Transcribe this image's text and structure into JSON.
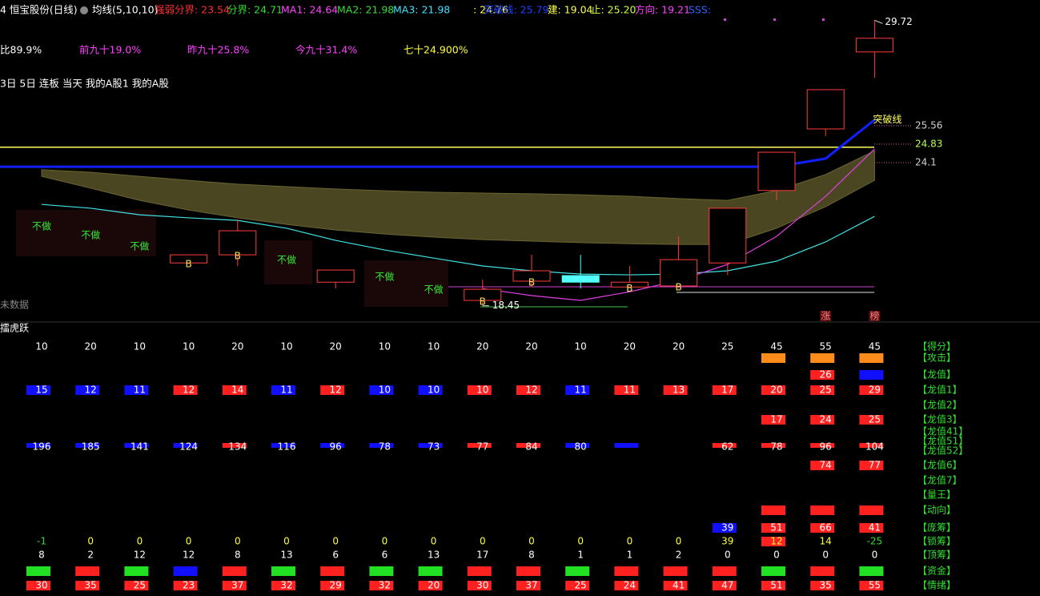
{
  "header": {
    "items": [
      {
        "text": "4 恒宝股份(日线)",
        "color": "#ffffff"
      },
      {
        "text": "均线(5,10,10)",
        "color": "#ffffff"
      },
      {
        "text": "强弱分界: 23.54",
        "color": "#ff3030"
      },
      {
        "text": "分界: 24.71",
        "color": "#33dd33"
      },
      {
        "text": "MA1: 24.64",
        "color": "#ff40ff"
      },
      {
        "text": "MA2: 21.98",
        "color": "#33dd33"
      },
      {
        "text": "MA3: 21.98",
        "color": "#40e0ff"
      },
      {
        "text": ": 24.76",
        "color": "#ffff40"
      },
      {
        "text": "突破线: 25.79",
        "color": "#2040ff"
      },
      {
        "text": "建: 19.04",
        "color": "#ffff40"
      },
      {
        "text": "止: 25.20",
        "color": "#ccff40"
      },
      {
        "text": "方向: 19.21",
        "color": "#ff40ff"
      },
      {
        "text": "SSS:",
        "color": "#3060ff"
      }
    ],
    "row2": [
      {
        "text": "比89.9%",
        "color": "#ffffff"
      },
      {
        "text": "前九十19.0%",
        "color": "#ff40ff"
      },
      {
        "text": "昨九十25.8%",
        "color": "#ff40ff"
      },
      {
        "text": "今九十31.4%",
        "color": "#ff40ff"
      },
      {
        "text": "七十24.900%",
        "color": "#ffff40"
      }
    ],
    "row3": "3日 5日 连板 当天 我的A股1 我的A股",
    "no_data": "未数据"
  },
  "chart_data": {
    "type": "candlestick",
    "categories": [
      null,
      null,
      null,
      null,
      null,
      null,
      null,
      null,
      null,
      null,
      null,
      null,
      null,
      null,
      null,
      null,
      null,
      null
    ],
    "open": [
      null,
      null,
      null,
      20.14,
      20.46,
      null,
      19.38,
      null,
      null,
      18.66,
      19.42,
      19.64,
      19.19,
      19.23,
      20.14,
      23.0,
      25.43,
      28.47
    ],
    "high": [
      null,
      null,
      null,
      20.46,
      21.85,
      null,
      19.86,
      null,
      null,
      19.48,
      20.46,
      20.46,
      20.02,
      21.19,
      22.3,
      24.51,
      26.98,
      29.72
    ],
    "low": [
      null,
      null,
      null,
      20.14,
      20.02,
      null,
      19.13,
      null,
      null,
      18.45,
      19.19,
      19.13,
      19.19,
      19.13,
      19.67,
      22.61,
      25.14,
      27.45
    ],
    "close": [
      null,
      null,
      null,
      20.46,
      21.41,
      null,
      19.86,
      null,
      null,
      19.1,
      19.83,
      19.38,
      19.38,
      20.27,
      22.3,
      24.51,
      26.98,
      29.01
    ],
    "up_color": "#ff3c3c",
    "down_color": "#54ffff",
    "ylim": [
      17.87,
      30.52
    ],
    "band": {
      "color": "#4a4622",
      "upper": [
        23.82,
        23.72,
        23.56,
        23.4,
        23.25,
        23.15,
        23.06,
        22.99,
        22.93,
        22.9,
        22.87,
        22.83,
        22.77,
        22.68,
        22.61,
        23.0,
        23.63,
        24.57
      ],
      "lower": [
        23.56,
        23.09,
        22.61,
        22.23,
        21.92,
        21.66,
        21.44,
        21.28,
        21.16,
        21.06,
        21.0,
        20.94,
        20.9,
        20.87,
        20.87,
        21.51,
        22.36,
        23.4
      ]
    },
    "series": [
      {
        "color": "#40e0e0",
        "values": [
          22.45,
          22.3,
          22.04,
          21.92,
          21.82,
          21.51,
          21.03,
          20.65,
          20.33,
          20.02,
          19.83,
          19.7,
          19.67,
          19.7,
          19.83,
          20.21,
          20.97,
          21.98
        ]
      },
      {
        "color": "#e040e0",
        "values": [
          null,
          null,
          null,
          null,
          null,
          null,
          null,
          null,
          null,
          19.13,
          18.85,
          18.66,
          19.0,
          19.45,
          20.08,
          21.19,
          22.77,
          24.64
        ]
      },
      {
        "name": "突破线",
        "color": "#1020ff",
        "values": [
          23.94,
          23.94,
          23.94,
          23.94,
          23.94,
          23.94,
          23.94,
          23.94,
          23.94,
          23.94,
          23.94,
          23.94,
          23.94,
          23.94,
          23.94,
          23.94,
          24.26,
          25.79
        ]
      }
    ],
    "hlines": [
      {
        "value": 24.71,
        "color": "#ffff60"
      }
    ],
    "price_labels": [
      {
        "value": 25.56,
        "color": "#d0d0d0"
      },
      {
        "value": 24.83,
        "color": "#b8ff50"
      },
      {
        "value": 24.1,
        "color": "#d0d0d0"
      }
    ],
    "high_label": 29.72,
    "low_label": 18.45,
    "signals": [
      "不做",
      "不做",
      "不做",
      "B",
      "B",
      "不做",
      null,
      "不做",
      "不做",
      "B",
      "B",
      null,
      "B",
      "B",
      null,
      null,
      null,
      null
    ],
    "tags": [
      null,
      null,
      null,
      null,
      null,
      null,
      null,
      null,
      null,
      null,
      null,
      null,
      null,
      null,
      null,
      null,
      "涨",
      "榜"
    ]
  },
  "indicators": {
    "title": "擂虎跃",
    "rows": [
      {
        "label": "【得分】",
        "values": [
          10,
          20,
          10,
          10,
          20,
          10,
          20,
          10,
          10,
          20,
          20,
          10,
          20,
          20,
          25,
          45,
          55,
          45
        ]
      },
      {
        "label": "【攻击】",
        "boxes": [
          null,
          null,
          null,
          null,
          null,
          null,
          null,
          null,
          null,
          null,
          null,
          null,
          null,
          null,
          null,
          "#ff8c1a",
          "#ff8c1a",
          "#ff8c1a"
        ]
      },
      {
        "label": "【龙值】",
        "values": [
          null,
          null,
          null,
          null,
          null,
          null,
          null,
          null,
          null,
          null,
          null,
          null,
          null,
          null,
          null,
          null,
          26,
          null
        ],
        "boxes": [
          null,
          null,
          null,
          null,
          null,
          null,
          null,
          null,
          null,
          null,
          null,
          null,
          null,
          null,
          null,
          null,
          "#ff2020",
          "#1010ff"
        ]
      },
      {
        "label": "【龙值1】",
        "values": [
          15,
          12,
          11,
          12,
          14,
          11,
          12,
          10,
          10,
          10,
          12,
          11,
          11,
          13,
          17,
          20,
          25,
          29
        ],
        "boxes": [
          "#1010ff",
          "#1010ff",
          "#1010ff",
          "#ff2020",
          "#ff2020",
          "#1010ff",
          "#ff2020",
          "#1010ff",
          "#1010ff",
          "#ff2020",
          "#ff2020",
          "#1010ff",
          "#ff2020",
          "#ff2020",
          "#ff2020",
          "#ff2020",
          "#ff2020",
          "#ff2020"
        ]
      },
      {
        "label": "【龙值2】"
      },
      {
        "label": "【龙值3】",
        "values": [
          null,
          null,
          null,
          null,
          null,
          null,
          null,
          null,
          null,
          null,
          null,
          null,
          null,
          null,
          null,
          17,
          24,
          25
        ],
        "boxes": [
          null,
          null,
          null,
          null,
          null,
          null,
          null,
          null,
          null,
          null,
          null,
          null,
          null,
          null,
          null,
          "#ff2020",
          "#ff2020",
          "#ff2020"
        ]
      },
      {
        "label": "【龙值41】",
        "values": [
          196,
          185,
          141,
          124,
          134,
          116,
          96,
          78,
          73,
          77,
          84,
          80,
          null,
          null,
          62,
          78,
          96,
          104
        ],
        "boxes": [
          "#1010ff",
          "#1010ff",
          "#1010ff",
          "#1010ff",
          "#ff2020",
          "#1010ff",
          "#1010ff",
          "#1010ff",
          "#1010ff",
          "#ff2020",
          "#ff2020",
          "#1010ff",
          "#1010ff",
          null,
          "#ff2020",
          "#ff2020",
          "#ff2020",
          "#ff2020"
        ]
      },
      {
        "label": "【龙值51】"
      },
      {
        "label": "【龙值52】"
      },
      {
        "label": "【龙值6】",
        "values": [
          null,
          null,
          null,
          null,
          null,
          null,
          null,
          null,
          null,
          null,
          null,
          null,
          null,
          null,
          null,
          null,
          74,
          77
        ],
        "boxes": [
          null,
          null,
          null,
          null,
          null,
          null,
          null,
          null,
          null,
          null,
          null,
          null,
          null,
          null,
          null,
          null,
          "#ff2020",
          "#ff2020"
        ]
      },
      {
        "label": "【龙值7】"
      },
      {
        "label": "【量王】"
      },
      {
        "label": "【动向】",
        "boxes": [
          null,
          null,
          null,
          null,
          null,
          null,
          null,
          null,
          null,
          null,
          null,
          null,
          null,
          null,
          null,
          "#ff2020",
          "#ff2020",
          "#ff2020"
        ]
      },
      {
        "label": "【庞筹】",
        "values": [
          null,
          null,
          null,
          null,
          null,
          null,
          null,
          null,
          null,
          null,
          null,
          null,
          null,
          null,
          39,
          51,
          66,
          41
        ],
        "boxes": [
          null,
          null,
          null,
          null,
          null,
          null,
          null,
          null,
          null,
          null,
          null,
          null,
          null,
          null,
          "#1010ff",
          "#ff2020",
          "#ff2020",
          "#ff2020"
        ]
      },
      {
        "label": "【锁筹】",
        "values": [
          -1,
          0,
          0,
          0,
          0,
          0,
          0,
          0,
          0,
          0,
          0,
          0,
          0,
          0,
          39,
          12,
          14,
          -25
        ],
        "boxes": [
          null,
          null,
          null,
          null,
          null,
          null,
          null,
          null,
          null,
          null,
          null,
          null,
          null,
          null,
          null,
          "#ff2020",
          null,
          null
        ],
        "text_colors": [
          "#33dd33",
          "#ffff40",
          "#ffff40",
          "#ffff40",
          "#ffff40",
          "#ffff40",
          "#ffff40",
          "#ffff40",
          "#ffff40",
          "#ffff40",
          "#ffff40",
          "#ffff40",
          "#ffff40",
          "#ffff40",
          "#ffff40",
          "#ffff40",
          "#ffff40",
          "#33dd33"
        ]
      },
      {
        "label": "【顶筹】",
        "values": [
          8,
          2,
          12,
          12,
          8,
          13,
          6,
          6,
          13,
          17,
          8,
          1,
          1,
          2,
          0,
          0,
          0,
          0
        ]
      },
      {
        "label": "【资金】",
        "boxes": [
          "#22e022",
          "#ff2020",
          "#22e022",
          "#1010ff",
          "#ff2020",
          "#22e022",
          "#ff2020",
          "#22e022",
          "#22e022",
          "#ff2020",
          "#ff2020",
          "#22e022",
          "#ff2020",
          "#ff2020",
          "#ff2020",
          "#22e022",
          "#ff2020",
          "#22e022"
        ]
      },
      {
        "label": "【情绪】",
        "values": [
          30,
          35,
          25,
          23,
          37,
          32,
          29,
          32,
          20,
          30,
          37,
          25,
          24,
          41,
          47,
          51,
          35,
          55
        ],
        "boxes": [
          "#ff2020",
          "#ff2020",
          "#ff2020",
          "#ff2020",
          "#ff2020",
          "#ff2020",
          "#ff2020",
          "#ff2020",
          "#ff2020",
          "#ff2020",
          "#ff2020",
          "#ff2020",
          "#ff2020",
          "#ff2020",
          "#ff2020",
          "#ff2020",
          "#ff2020",
          "#ff2020"
        ]
      }
    ]
  }
}
